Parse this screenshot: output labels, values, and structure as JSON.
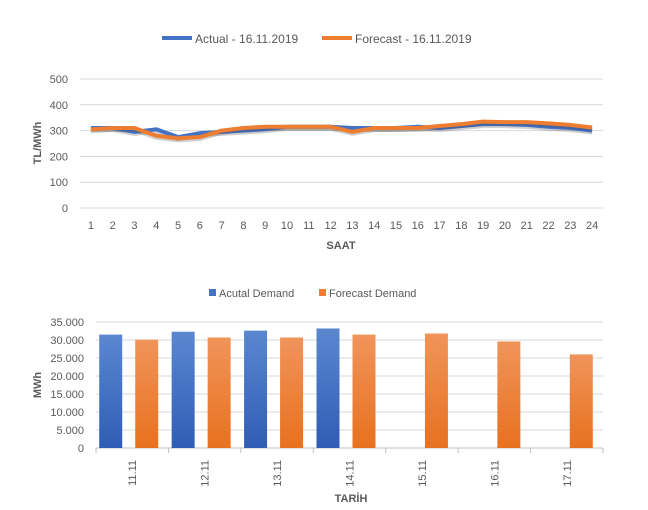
{
  "chart_data": [
    {
      "type": "line",
      "title": "",
      "xlabel": "SAAT",
      "ylabel": "TL/MWh",
      "ylim": [
        0,
        500
      ],
      "yticks": [
        "0",
        "100",
        "200",
        "300",
        "400",
        "500"
      ],
      "x": [
        "1",
        "2",
        "3",
        "4",
        "5",
        "6",
        "7",
        "8",
        "9",
        "10",
        "11",
        "12",
        "13",
        "14",
        "15",
        "16",
        "17",
        "18",
        "19",
        "20",
        "21",
        "22",
        "23",
        "24"
      ],
      "grid": true,
      "legend": "top",
      "series": [
        {
          "name": "Actual - 16.11.2019",
          "color": "#4472C4",
          "values": [
            310,
            310,
            295,
            305,
            275,
            290,
            295,
            300,
            305,
            315,
            315,
            315,
            310,
            310,
            310,
            315,
            310,
            318,
            325,
            325,
            322,
            315,
            310,
            300
          ]
        },
        {
          "name": "Forecast - 16.11.2019",
          "color": "#ED7D31",
          "values": [
            305,
            310,
            310,
            280,
            270,
            275,
            300,
            310,
            315,
            315,
            315,
            315,
            295,
            310,
            310,
            310,
            318,
            325,
            335,
            333,
            333,
            328,
            322,
            312
          ]
        }
      ]
    },
    {
      "type": "bar",
      "title": "",
      "xlabel": "TARİH",
      "ylabel": "MWh",
      "ylim": [
        0,
        35000
      ],
      "yticks": [
        "0",
        "5.000",
        "10.000",
        "15.000",
        "20.000",
        "25.000",
        "30.000",
        "35.000"
      ],
      "categories": [
        "11.11",
        "12.11",
        "13.11",
        "14.11",
        "15.11",
        "16.11",
        "17.11"
      ],
      "grid": true,
      "legend": "top",
      "series": [
        {
          "name": "Acutal Demand",
          "color": "#4472C4",
          "values": [
            31500,
            32300,
            32600,
            33200,
            null,
            null,
            null
          ]
        },
        {
          "name": "Forecast Demand",
          "color": "#ED7D31",
          "values": [
            30100,
            30700,
            30700,
            31500,
            31800,
            29600,
            26000
          ]
        }
      ]
    }
  ]
}
